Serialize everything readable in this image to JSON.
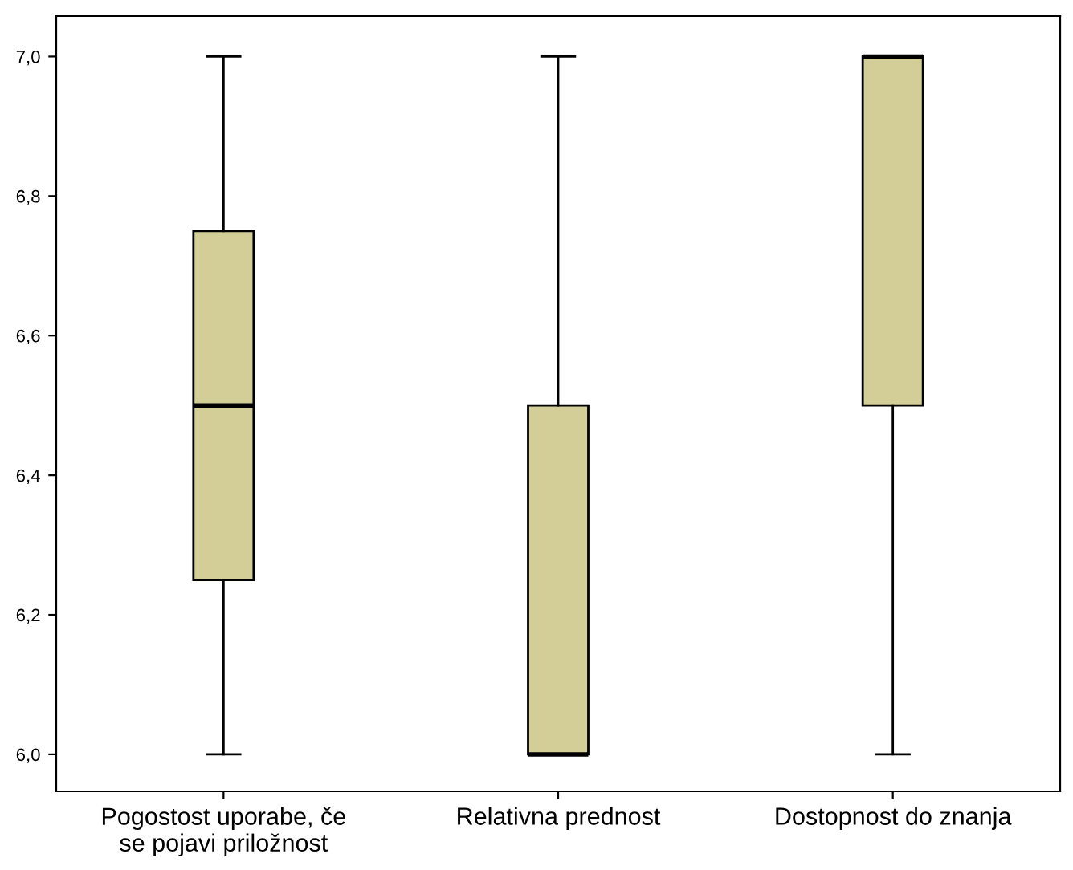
{
  "chart_data": {
    "type": "box",
    "categories": [
      "Pogostost uporabe, če\nse pojavi priložnost",
      "Relativna prednost",
      "Dostopnost do znanja"
    ],
    "boxes": [
      {
        "low": 6.0,
        "q1": 6.25,
        "median": 6.5,
        "q3": 6.75,
        "high": 7.0
      },
      {
        "low": 6.0,
        "q1": 6.0,
        "median": 6.0,
        "q3": 6.5,
        "high": 7.0
      },
      {
        "low": 6.0,
        "q1": 6.5,
        "median": 7.0,
        "q3": 7.0,
        "high": 7.0
      }
    ],
    "color": "#d3ce97",
    "ylim": [
      5.947,
      7.058
    ],
    "yticks": [
      {
        "value": 6.0,
        "label": "6,0"
      },
      {
        "value": 6.2,
        "label": "6,2"
      },
      {
        "value": 6.4,
        "label": "6,4"
      },
      {
        "value": 6.6,
        "label": "6,6"
      },
      {
        "value": 6.8,
        "label": "6,8"
      },
      {
        "value": 7.0,
        "label": "7,0"
      }
    ],
    "grid": false
  }
}
